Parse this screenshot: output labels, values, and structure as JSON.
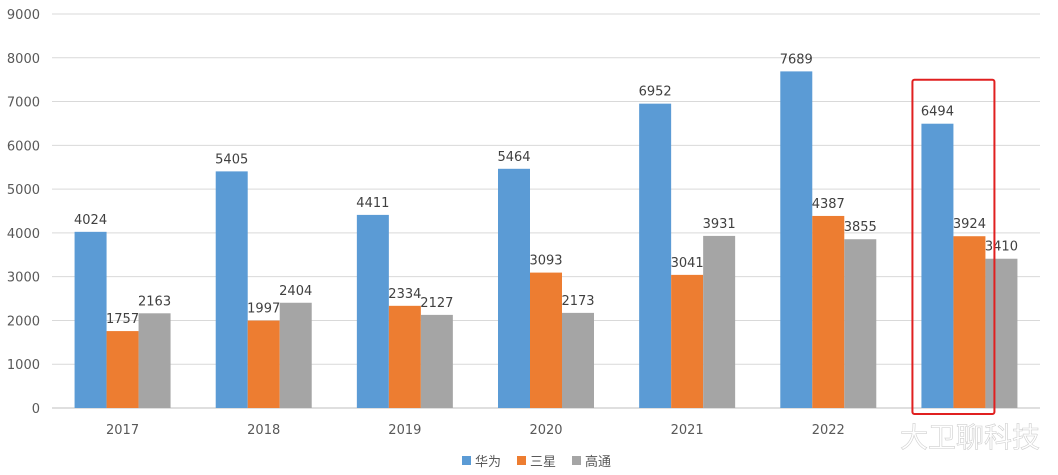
{
  "chart_data": {
    "type": "bar",
    "title": "",
    "xlabel": "",
    "ylabel": "",
    "categories": [
      "2017",
      "2018",
      "2019",
      "2020",
      "2021",
      "2022",
      ""
    ],
    "ylim": [
      0,
      9000
    ],
    "yticks": [
      "0",
      "1000",
      "2000",
      "3000",
      "4000",
      "5000",
      "6000",
      "7000",
      "8000",
      "9000"
    ],
    "grid": true,
    "legend_position": "bottom",
    "series": [
      {
        "name": "华为",
        "color": "#5b9bd5",
        "values": [
          4024,
          5405,
          4411,
          5464,
          6952,
          7689,
          6494
        ]
      },
      {
        "name": "三星",
        "color": "#ed7d31",
        "values": [
          1757,
          1997,
          2334,
          3093,
          3041,
          4387,
          3924
        ]
      },
      {
        "name": "高通",
        "color": "#a5a5a5",
        "values": [
          2163,
          2404,
          2127,
          2173,
          3931,
          3855,
          3410
        ]
      }
    ],
    "highlight": {
      "category_index": 6,
      "color": "#e02020"
    }
  },
  "watermark": "大卫聊科技"
}
